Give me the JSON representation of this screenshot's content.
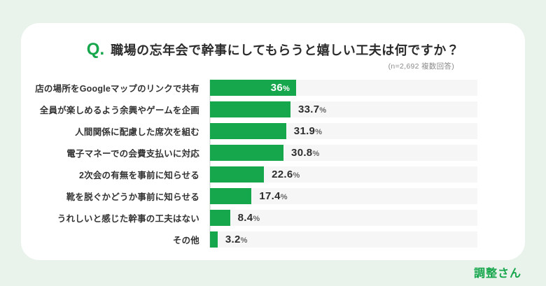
{
  "header": {
    "q_mark": "Q.",
    "title": "職場の忘年会で幹事にしてもらうと嬉しい工夫は何ですか？",
    "note": "(n=2,692 複数回答)"
  },
  "footer": {
    "logo": "調整さん"
  },
  "colors": {
    "background": "#e9f3ec",
    "card": "#ffffff",
    "bar_green": "#16a64c",
    "track_gray": "#f5f6f5",
    "title_dark": "#2b2b2b",
    "label_dark": "#333333",
    "value_dark": "#2d2d2d",
    "percent_gray": "#666666",
    "note_gray": "#8b8b8b",
    "inside_value_white": "#ffffff"
  },
  "chart_data": {
    "type": "bar",
    "orientation": "horizontal",
    "title": "職場の忘年会で幹事にしてもらうと嬉しい工夫は何ですか？",
    "sample_note": "(n=2,692 複数回答)",
    "categories": [
      "店の場所をGoogleマップのリンクで共有",
      "全員が楽しめるよう余興やゲームを企画",
      "人間関係に配慮した席次を組む",
      "電子マネーでの会費支払いに対応",
      "2次会の有無を事前に知らせる",
      "靴を脱ぐかどうか事前に知らせる",
      "うれしいと感じた幹事の工夫はない",
      "その他"
    ],
    "values": [
      36,
      33.7,
      31.9,
      30.8,
      22.6,
      17.4,
      8.4,
      3.2
    ],
    "display_values": [
      "36",
      "33.7",
      "31.9",
      "30.8",
      "22.6",
      "17.4",
      "8.4",
      "3.2"
    ],
    "unit": "%",
    "xlim": [
      0,
      112
    ],
    "grid": false,
    "legend": false,
    "first_value_inside_bar": true
  }
}
